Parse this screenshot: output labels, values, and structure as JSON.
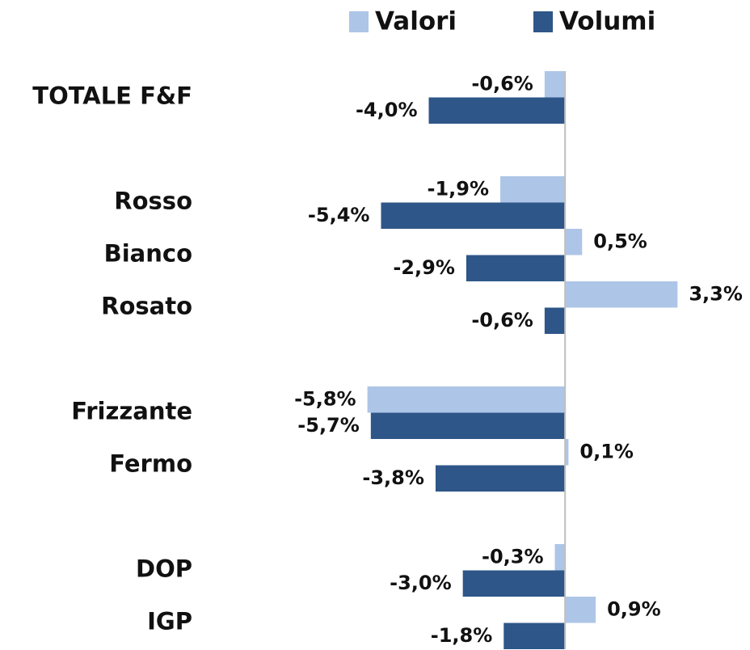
{
  "chart_data": {
    "type": "hbar",
    "categories": [
      "TOTALE F&F",
      null,
      "Rosso",
      "Bianco",
      "Rosato",
      null,
      "Frizzante",
      "Fermo",
      null,
      "DOP",
      "IGP"
    ],
    "series": [
      {
        "name": "Valori",
        "color": "#adc5e7",
        "values": [
          -0.6,
          null,
          -1.9,
          0.5,
          3.3,
          null,
          -5.8,
          0.1,
          null,
          -0.3,
          0.9
        ],
        "value_labels": [
          "-0,6%",
          null,
          "-1,9%",
          "0,5%",
          "3,3%",
          null,
          "-5,8%",
          "0,1%",
          null,
          "-0,3%",
          "0,9%"
        ]
      },
      {
        "name": "Volumi",
        "color": "#2e5688",
        "values": [
          -4.0,
          null,
          -5.4,
          -2.9,
          -0.6,
          null,
          -5.7,
          -3.8,
          null,
          -3.0,
          -1.8
        ],
        "value_labels": [
          "-4,0%",
          null,
          "-5,4%",
          "-2,9%",
          "-0,6%",
          null,
          "-5,7%",
          "-3,8%",
          null,
          "-3,0%",
          "-1,8%"
        ]
      }
    ],
    "xlim": [
      -7,
      5
    ],
    "legend": "top"
  }
}
